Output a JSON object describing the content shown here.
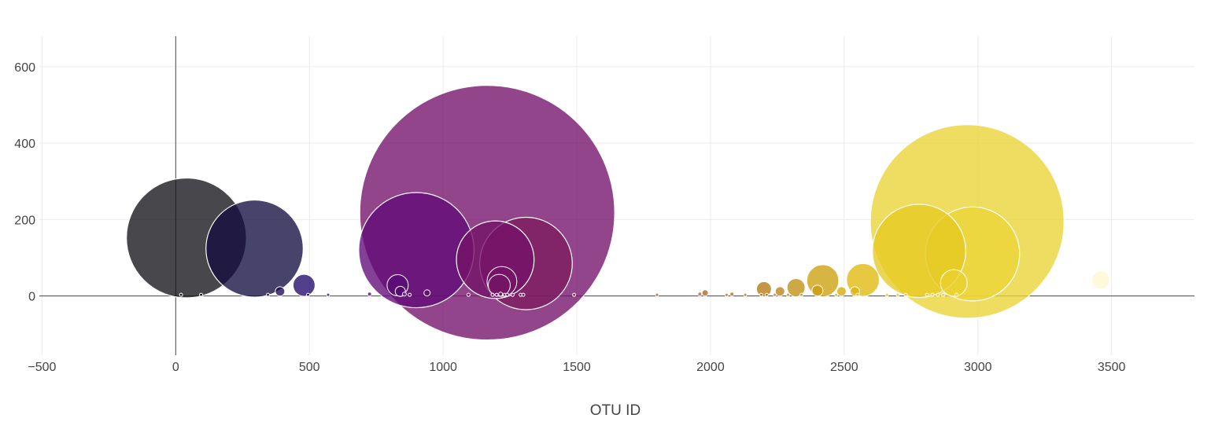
{
  "chart_data": {
    "type": "scatter",
    "subtype": "bubble",
    "title": "",
    "xlabel": "OTU ID",
    "ylabel": "",
    "xlim": [
      -510,
      3810
    ],
    "ylim": [
      -155,
      680
    ],
    "x_ticks": [
      -500,
      0,
      500,
      1000,
      1500,
      2000,
      2500,
      3000,
      3500
    ],
    "x_tick_labels": [
      "−500",
      "0",
      "500",
      "1000",
      "1500",
      "2000",
      "2500",
      "3000",
      "3500"
    ],
    "y_ticks": [
      0,
      200,
      400,
      600
    ],
    "y_tick_labels": [
      "0",
      "200",
      "400",
      "600"
    ],
    "grid": true,
    "legend": "none",
    "colorscale": "black-purple-brown-yellow (by OTU ID)",
    "marker_size": "proportional to sample value",
    "x": [
      40,
      295,
      20,
      95,
      345,
      390,
      480,
      495,
      570,
      725,
      830,
      840,
      855,
      875,
      900,
      940,
      1095,
      1165,
      1185,
      1195,
      1200,
      1210,
      1215,
      1220,
      1230,
      1240,
      1260,
      1290,
      1300,
      1310,
      1490,
      1800,
      1960,
      1980,
      2060,
      2080,
      2130,
      2190,
      2200,
      2210,
      2240,
      2260,
      2290,
      2320,
      2340,
      2400,
      2420,
      2470,
      2490,
      2540,
      2550,
      2570,
      2660,
      2700,
      2730,
      2780,
      2810,
      2830,
      2850,
      2870,
      2910,
      2920,
      2960,
      2980,
      3460
    ],
    "y": [
      152,
      124,
      3,
      3,
      3,
      12,
      28,
      3,
      3,
      5,
      28,
      12,
      5,
      3,
      120,
      8,
      3,
      218,
      3,
      95,
      3,
      28,
      5,
      38,
      3,
      3,
      3,
      3,
      3,
      85,
      3,
      3,
      5,
      8,
      3,
      5,
      3,
      3,
      18,
      3,
      3,
      12,
      3,
      22,
      3,
      14,
      40,
      3,
      12,
      12,
      3,
      42,
      3,
      3,
      3,
      118,
      3,
      3,
      3,
      3,
      34,
      3,
      195,
      110,
      42
    ],
    "values": [
      153,
      124,
      1,
      1,
      1,
      12,
      28,
      1,
      1,
      5,
      27,
      13,
      5,
      2,
      147,
      8,
      2,
      325,
      3,
      99,
      2,
      28,
      5,
      38,
      3,
      2,
      2,
      3,
      3,
      118,
      2,
      2,
      5,
      8,
      2,
      5,
      2,
      3,
      19,
      2,
      3,
      12,
      2,
      23,
      2,
      14,
      41,
      2,
      12,
      12,
      3,
      42,
      2,
      3,
      2,
      119,
      2,
      3,
      2,
      2,
      34,
      2,
      247,
      120,
      23
    ]
  }
}
